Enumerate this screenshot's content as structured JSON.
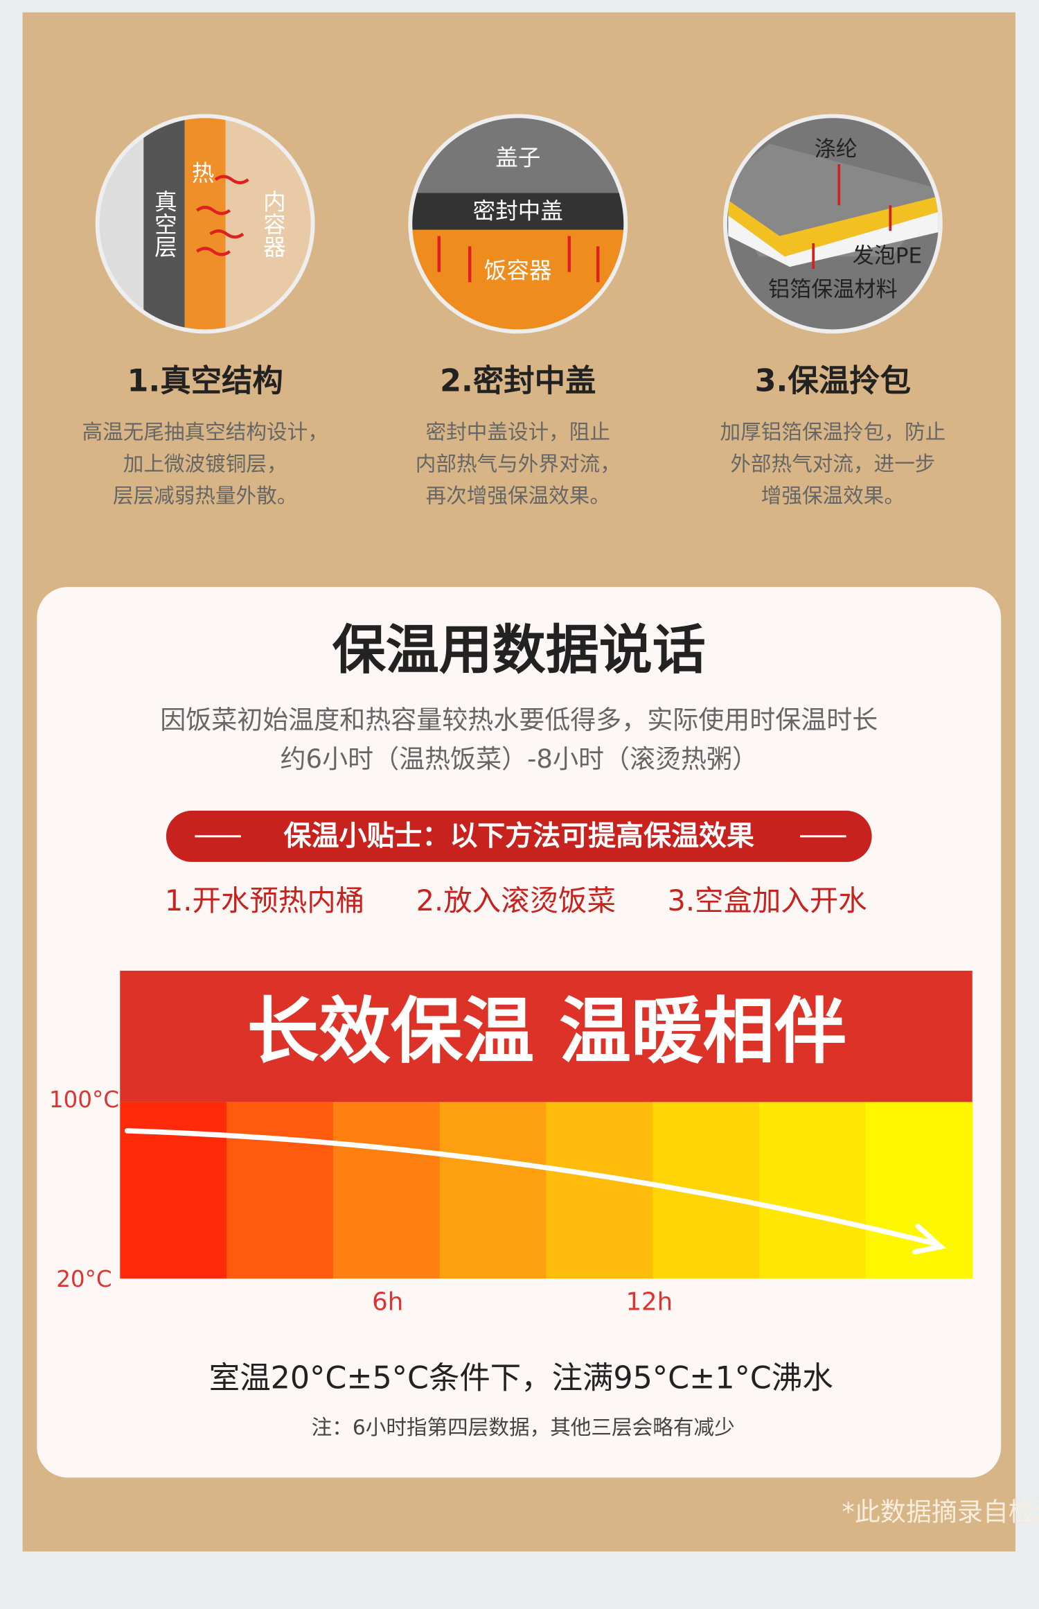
{
  "features": [
    {
      "title": "1.真空结构",
      "desc": [
        "高温无尾抽真空结构设计，",
        "加上微波镀铜层，",
        "层层减弱热量外散。"
      ],
      "labels": [
        "真空层",
        "热",
        "内容器"
      ]
    },
    {
      "title": "2.密封中盖",
      "desc": [
        "密封中盖设计，阻止",
        "内部热气与外界对流，",
        "再次增强保温效果。"
      ],
      "labels": [
        "盖子",
        "密封中盖",
        "饭容器"
      ]
    },
    {
      "title": "3.保温拎包",
      "desc": [
        "加厚铝箔保温拎包，防止",
        "外部热气对流，进一步",
        "增强保温效果。"
      ],
      "labels": [
        "涤纶",
        "发泡PE",
        "铝箔保温材料"
      ]
    }
  ],
  "section": {
    "title": "保温用数据说话",
    "subtitle": [
      "因饭菜初始温度和热容量较热水要低得多，实际使用时保温时长",
      "约6小时（温热饭菜）-8小时（滚烫热粥）"
    ],
    "tip_title": "保温小贴士：以下方法可提高保温效果",
    "tips": [
      "1.开水预热内桶",
      "2.放入滚烫饭菜",
      "3.空盒加入开水"
    ],
    "banner": "长效保温 温暖相伴",
    "y_labels": [
      "100°C",
      "20°C"
    ],
    "x_labels": [
      "6h",
      "12h"
    ],
    "condition": "室温20°C±5°C条件下，注满95°C±1°C沸水",
    "note": "注：6小时指第四层数据，其他三层会略有减少"
  },
  "source": "*此数据摘录自检测报告"
}
